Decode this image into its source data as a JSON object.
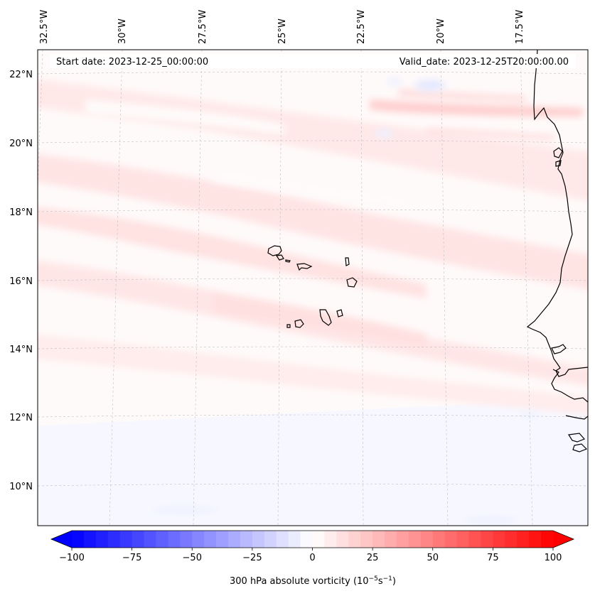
{
  "header": {
    "start_date": "Start date: 2023-12-25_00:00:00",
    "valid_date": "Valid_date: 2023-12-25T20:00:00.00"
  },
  "map": {
    "projection": "lambert-conformal",
    "extent": {
      "lon_min": -33,
      "lon_max": -16,
      "lat_min": 9,
      "lat_max": 22.8
    },
    "longitude_labels": [
      "32.5°W",
      "30°W",
      "27.5°W",
      "25°W",
      "22.5°W",
      "20°W",
      "17.5°W"
    ],
    "latitude_labels": [
      "22°N",
      "20°N",
      "18°N",
      "16°N",
      "14°N",
      "12°N",
      "10°N"
    ],
    "gridlines": true,
    "features": [
      "cape-verde-islands",
      "west-african-coastline"
    ]
  },
  "colorbar": {
    "label_text": "300 hPa absolute vorticity (10",
    "label_sup1": "−5",
    "label_mid": "s",
    "label_sup2": "−1",
    "label_end": ")",
    "tick_labels": [
      "−100",
      "−75",
      "−50",
      "−25",
      "0",
      "25",
      "50",
      "75",
      "100"
    ],
    "range": [
      -100,
      100
    ],
    "step": 5,
    "colormap": "bwr",
    "extend": "both",
    "colors": {
      "min": "#0000ff",
      "mid": "#ffffff",
      "max": "#ff0000"
    }
  },
  "field": {
    "variable": "300 hPa absolute vorticity",
    "dominant_sign": "positive",
    "typical_range": [
      0,
      20
    ]
  }
}
